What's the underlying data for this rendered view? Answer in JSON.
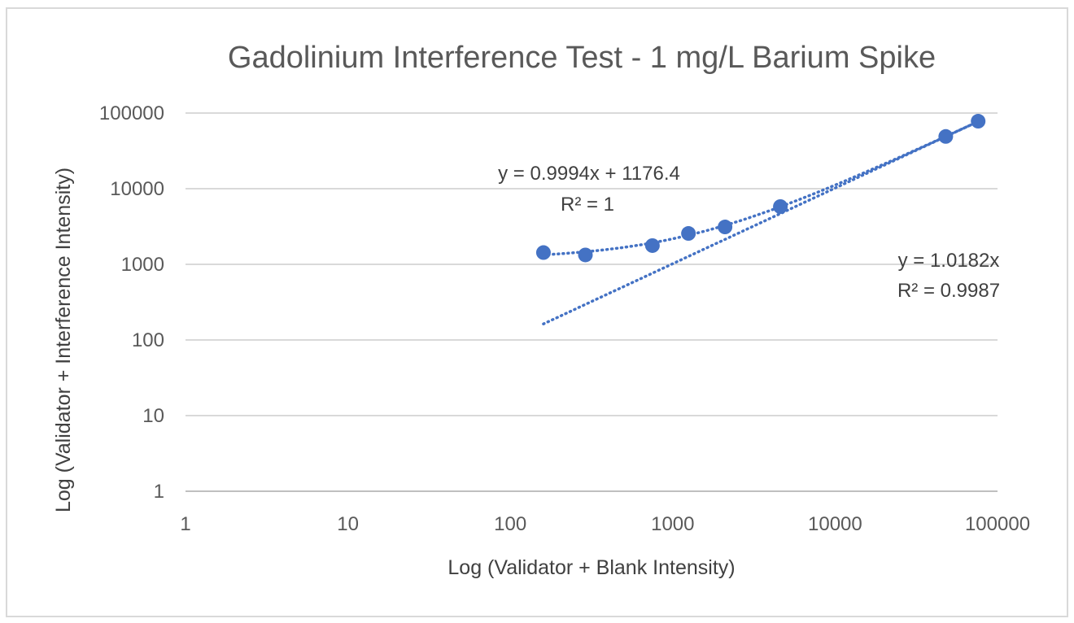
{
  "chart_data": {
    "type": "scatter",
    "title": "Gadolinium Interference Test - 1 mg/L Barium Spike",
    "xlabel": "Log (Validator + Blank Intensity)",
    "ylabel": "Log (Validator + Interference Intensity)",
    "x_scale": "log",
    "y_scale": "log",
    "xlim": [
      1,
      100000
    ],
    "ylim": [
      1,
      100000
    ],
    "x_ticks": [
      "1",
      "10",
      "100",
      "1000",
      "10000",
      "100000"
    ],
    "y_ticks": [
      "1",
      "10",
      "100",
      "1000",
      "10000",
      "100000"
    ],
    "grid": "horizontal",
    "legend": "none",
    "marker_color": "#4472c4",
    "points": [
      {
        "x": 160,
        "y": 1430
      },
      {
        "x": 290,
        "y": 1330
      },
      {
        "x": 750,
        "y": 1770
      },
      {
        "x": 1250,
        "y": 2560
      },
      {
        "x": 2100,
        "y": 3120
      },
      {
        "x": 4600,
        "y": 5800
      },
      {
        "x": 48000,
        "y": 49000
      },
      {
        "x": 76000,
        "y": 78000
      }
    ],
    "trendlines": [
      {
        "type": "linear",
        "slope": 0.9994,
        "intercept": 1176.4,
        "x_range": [
          160,
          76000
        ],
        "equation": "y = 0.9994x + 1176.4",
        "r2": "R² = 1"
      },
      {
        "type": "linear",
        "slope": 1.0182,
        "intercept": 0,
        "x_range": [
          160,
          76000
        ],
        "equation": "y = 1.0182x",
        "r2": "R² = 0.9987"
      }
    ]
  }
}
